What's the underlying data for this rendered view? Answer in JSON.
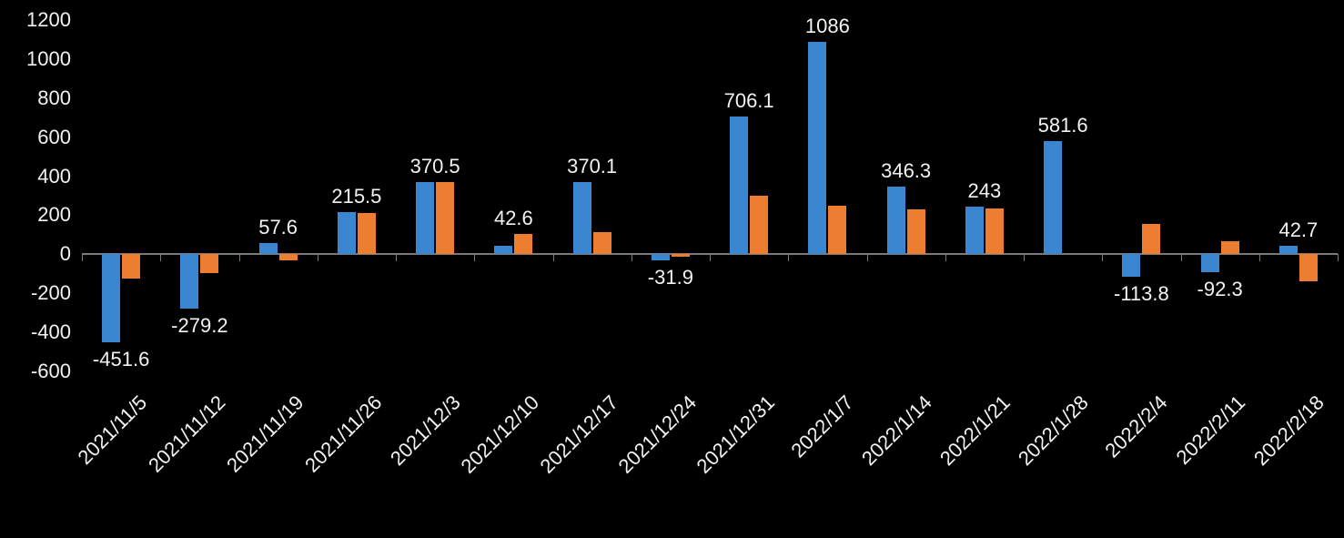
{
  "chart_data": {
    "type": "bar",
    "title": "",
    "xlabel": "",
    "ylabel": "",
    "categories": [
      "2021/11/5",
      "2021/11/12",
      "2021/11/19",
      "2021/11/26",
      "2021/12/3",
      "2021/12/10",
      "2021/12/17",
      "2021/12/24",
      "2021/12/31",
      "2022/1/7",
      "2022/1/14",
      "2022/1/21",
      "2022/1/28",
      "2022/2/4",
      "2022/2/11",
      "2022/2/18"
    ],
    "series": [
      {
        "name": "blue-series",
        "color": "#3a86d0",
        "values": [
          -451.6,
          -279.2,
          57.6,
          215.5,
          370.5,
          42.6,
          370.1,
          -31.9,
          706.1,
          1086,
          346.3,
          243,
          581.6,
          -113.8,
          -92.3,
          42.7
        ],
        "data_labels": [
          "-451.6",
          "-279.2",
          "57.6",
          "215.5",
          "370.5",
          "42.6",
          "370.1",
          "-31.9",
          "706.1",
          "1086",
          "346.3",
          "243",
          "581.6",
          "-113.8",
          "-92.3",
          "42.7"
        ]
      },
      {
        "name": "orange-series",
        "color": "#ed7d31",
        "values": [
          -125,
          -95,
          -30,
          212,
          368,
          105,
          115,
          -12,
          300,
          250,
          230,
          235,
          0,
          155,
          65,
          -140
        ],
        "data_labels": []
      }
    ],
    "ylim": [
      -600,
      1200
    ],
    "yticks": [
      1200,
      1000,
      800,
      600,
      400,
      200,
      0,
      -200,
      -400,
      -600
    ],
    "legend": "none",
    "grid": false,
    "background_color": "#000000",
    "text_color": "#f2f2f2",
    "axis_color": "#7a7a7a"
  }
}
